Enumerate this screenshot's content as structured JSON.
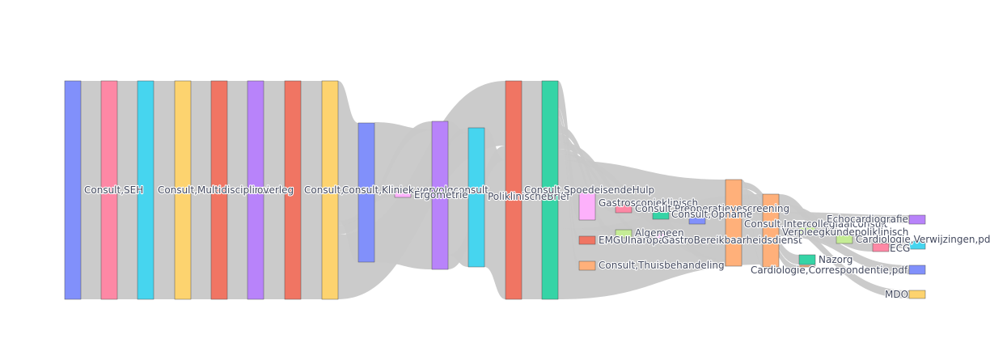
{
  "chart_data": {
    "type": "sankey",
    "title": "",
    "nodes": [
      {
        "id": "n1",
        "label": "",
        "color": "#8190fb",
        "value": 270
      },
      {
        "id": "n2",
        "label": "Consult,SEH",
        "color": "#fd88a5",
        "value": 270
      },
      {
        "id": "n3",
        "label": "",
        "color": "#46d5ef",
        "value": 270
      },
      {
        "id": "n4",
        "label": "Consult,Multidisciplinair",
        "color": "#fdd36f",
        "value": 270
      },
      {
        "id": "n5",
        "label": "",
        "color": "#f07563",
        "value": 270
      },
      {
        "id": "n6",
        "label": "overleg",
        "color": "#b883fa",
        "value": 270
      },
      {
        "id": "n7",
        "label": "",
        "color": "#f07563",
        "value": 270
      },
      {
        "id": "n8",
        "label": "Consult,",
        "color": "#fdd36f",
        "value": 270
      },
      {
        "id": "n9",
        "label": "Consult,Kliniek,vervolgconsult",
        "color": "#8190fb",
        "value": 173
      },
      {
        "id": "n10",
        "label": "Ergometrie",
        "color": "#fdb1fb",
        "value": 6
      },
      {
        "id": "n11",
        "label": "",
        "color": "#b883fa",
        "value": 184
      },
      {
        "id": "n12",
        "label": "PoliklinischeBrief",
        "color": "#46d5ef",
        "value": 172
      },
      {
        "id": "n13",
        "label": "",
        "color": "#f07563",
        "value": 270
      },
      {
        "id": "n14",
        "label": "Consult,SpoedeisendeHulp",
        "color": "#35d4a6",
        "value": 270
      },
      {
        "id": "n15",
        "label": "",
        "color": "#fdb1fb",
        "value": 34
      },
      {
        "id": "n16",
        "label": "EMGUInaropathie",
        "color": "#f07563",
        "value": 10
      },
      {
        "id": "n17",
        "label": "Consult,Thuisbehandeling",
        "color": "#ffb07a",
        "value": 11
      },
      {
        "id": "n18",
        "label": "Gastroscopieklinisch",
        "color": "#fd88a5",
        "value": 10
      },
      {
        "id": "n19",
        "label": "Algemeen",
        "color": "#c5ec95",
        "value": 10
      },
      {
        "id": "n20",
        "label": "Consult,Preoperatievescreening",
        "color": "#35d4a6",
        "value": 9
      },
      {
        "id": "n21",
        "label": "GastroBereikbaarheidsdienst",
        "color": "#fdb1fb",
        "value": 6
      },
      {
        "id": "n22",
        "label": "Consult,Opname",
        "color": "#8190fb",
        "value": 8
      },
      {
        "id": "n23",
        "label": "",
        "color": "#ffb07a",
        "value": 107
      },
      {
        "id": "n24",
        "label": "Consult,Intercollegiaalconsult",
        "color": "#ffb07a",
        "value": 90
      },
      {
        "id": "n25",
        "label": "Verpleegkundepoliklinisch",
        "color": "#c5ec95",
        "value": 8
      },
      {
        "id": "n26",
        "label": "Nazorg",
        "color": "#35d4a6",
        "value": 12
      },
      {
        "id": "n27",
        "label": "Cardiologie,Correspondentie,pdf",
        "color": "#ffb07a",
        "value": 9
      },
      {
        "id": "n28",
        "label": "Cardiologie,Verwijzingen,pdf",
        "color": "#c5ec95",
        "value": 12
      },
      {
        "id": "n29",
        "label": "ECG",
        "color": "#fd88a5",
        "value": 10
      },
      {
        "id": "n30",
        "label": "Echocardiografie",
        "color": "#b883fa",
        "value": 10
      },
      {
        "id": "n31",
        "label": "",
        "color": "#46d5ef",
        "value": 9
      },
      {
        "id": "n32",
        "label": "",
        "color": "#8190fb",
        "value": 11
      },
      {
        "id": "n33",
        "label": "MDO",
        "color": "#fdd36f",
        "value": 10
      }
    ],
    "links": [
      {
        "source": "n1",
        "target": "n2",
        "value": 270
      },
      {
        "source": "n2",
        "target": "n3",
        "value": 270
      },
      {
        "source": "n3",
        "target": "n4",
        "value": 270
      },
      {
        "source": "n4",
        "target": "n5",
        "value": 270
      },
      {
        "source": "n5",
        "target": "n6",
        "value": 270
      },
      {
        "source": "n6",
        "target": "n7",
        "value": 270
      },
      {
        "source": "n7",
        "target": "n8",
        "value": 270
      },
      {
        "source": "n8",
        "target": "n9",
        "value": 173
      },
      {
        "source": "n8",
        "target": "n10",
        "value": 6
      },
      {
        "source": "n8",
        "target": "n11",
        "value": 11
      },
      {
        "source": "n8",
        "target": "n13",
        "value": 80
      },
      {
        "source": "n9",
        "target": "n11",
        "value": 173
      },
      {
        "source": "n10",
        "target": "n12",
        "value": 6
      },
      {
        "source": "n11",
        "target": "n12",
        "value": 166
      },
      {
        "source": "n11",
        "target": "n13",
        "value": 18
      },
      {
        "source": "n12",
        "target": "n13",
        "value": 172
      },
      {
        "source": "n13",
        "target": "n14",
        "value": 270
      },
      {
        "source": "n14",
        "target": "n15",
        "value": 34
      },
      {
        "source": "n14",
        "target": "n16",
        "value": 10
      },
      {
        "source": "n14",
        "target": "n17",
        "value": 11
      },
      {
        "source": "n14",
        "target": "n18",
        "value": 10
      },
      {
        "source": "n14",
        "target": "n19",
        "value": 10
      },
      {
        "source": "n14",
        "target": "n20",
        "value": 9
      },
      {
        "source": "n14",
        "target": "n21",
        "value": 6
      },
      {
        "source": "n14",
        "target": "n22",
        "value": 8
      },
      {
        "source": "n14",
        "target": "n23",
        "value": 85
      },
      {
        "source": "n14",
        "target": "n24",
        "value": 87
      },
      {
        "source": "n15",
        "target": "n23",
        "value": 14
      },
      {
        "source": "n18",
        "target": "n23",
        "value": 8
      },
      {
        "source": "n23",
        "target": "n24",
        "value": 3
      },
      {
        "source": "n23",
        "target": "n25",
        "value": 8
      },
      {
        "source": "n23",
        "target": "n26",
        "value": 12
      },
      {
        "source": "n23",
        "target": "n27",
        "value": 9
      },
      {
        "source": "n23",
        "target": "n33",
        "value": 10
      },
      {
        "source": "n24",
        "target": "n28",
        "value": 12
      },
      {
        "source": "n24",
        "target": "n29",
        "value": 10
      },
      {
        "source": "n24",
        "target": "n30",
        "value": 10
      },
      {
        "source": "n24",
        "target": "n31",
        "value": 9
      },
      {
        "source": "n24",
        "target": "n32",
        "value": 11
      }
    ]
  }
}
